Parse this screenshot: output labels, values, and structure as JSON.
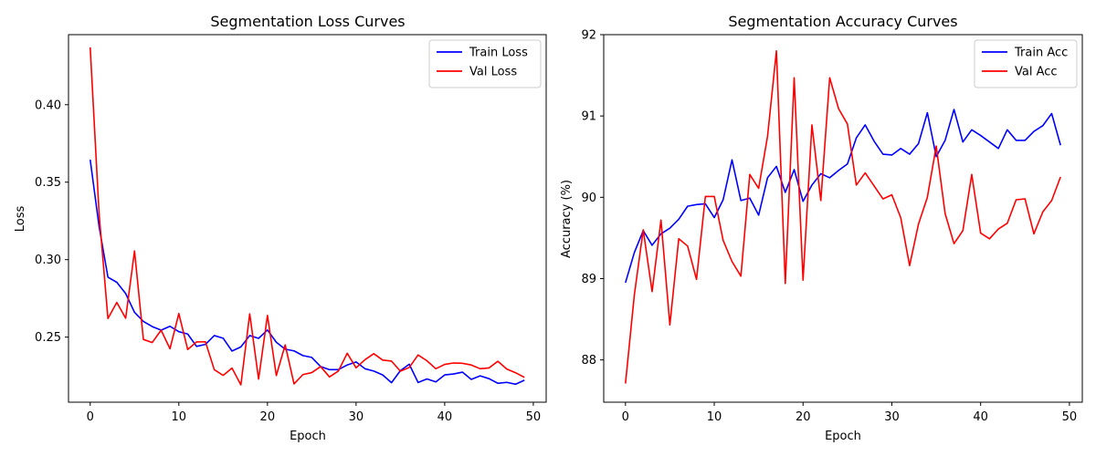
{
  "chart_data": [
    {
      "type": "line",
      "title": "Segmentation Loss Curves",
      "xlabel": "Epoch",
      "ylabel": "Loss",
      "xlim": [
        -2.45,
        51.45
      ],
      "ylim": [
        0.208,
        0.4452
      ],
      "xticks": [
        0,
        10,
        20,
        30,
        40,
        50
      ],
      "yticks": [
        0.25,
        0.3,
        0.35,
        0.4
      ],
      "ytick_labels": [
        "0.25",
        "0.30",
        "0.35",
        "0.40"
      ],
      "legend": "top-right",
      "grid": false,
      "x": [
        0,
        1,
        2,
        3,
        4,
        5,
        6,
        7,
        8,
        9,
        10,
        11,
        12,
        13,
        14,
        15,
        16,
        17,
        18,
        19,
        20,
        21,
        22,
        23,
        24,
        25,
        26,
        27,
        28,
        29,
        30,
        31,
        32,
        33,
        34,
        35,
        36,
        37,
        38,
        39,
        40,
        41,
        42,
        43,
        44,
        45,
        46,
        47,
        48,
        49
      ],
      "series": [
        {
          "name": "Train Loss",
          "color": "#0000ff",
          "values": [
            0.3645,
            0.3214,
            0.2887,
            0.2854,
            0.2781,
            0.266,
            0.2601,
            0.2568,
            0.2545,
            0.257,
            0.2535,
            0.252,
            0.244,
            0.2453,
            0.251,
            0.2493,
            0.241,
            0.2437,
            0.251,
            0.2492,
            0.2546,
            0.2467,
            0.2422,
            0.2411,
            0.2381,
            0.2369,
            0.231,
            0.229,
            0.229,
            0.232,
            0.234,
            0.2296,
            0.2281,
            0.2256,
            0.2206,
            0.2284,
            0.2325,
            0.2207,
            0.223,
            0.2211,
            0.2256,
            0.2262,
            0.2274,
            0.2227,
            0.225,
            0.2232,
            0.2202,
            0.2208,
            0.2196,
            0.2222
          ]
        },
        {
          "name": "Val Loss",
          "color": "#ff0000",
          "values": [
            0.437,
            0.3298,
            0.262,
            0.2724,
            0.2622,
            0.3056,
            0.2485,
            0.2465,
            0.2545,
            0.2425,
            0.2652,
            0.242,
            0.2469,
            0.247,
            0.229,
            0.2253,
            0.23,
            0.2192,
            0.265,
            0.2229,
            0.264,
            0.2252,
            0.245,
            0.2198,
            0.2258,
            0.2271,
            0.231,
            0.2243,
            0.2281,
            0.2396,
            0.2302,
            0.2354,
            0.2393,
            0.2352,
            0.2345,
            0.228,
            0.2304,
            0.2385,
            0.2347,
            0.2296,
            0.2324,
            0.2333,
            0.2331,
            0.232,
            0.2296,
            0.2301,
            0.2344,
            0.2294,
            0.227,
            0.224
          ]
        }
      ]
    },
    {
      "type": "line",
      "title": "Segmentation Accuracy Curves",
      "xlabel": "Epoch",
      "ylabel": "Accuracy (%)",
      "xlim": [
        -2.45,
        51.45
      ],
      "ylim": [
        87.48,
        92.0
      ],
      "xticks": [
        0,
        10,
        20,
        30,
        40,
        50
      ],
      "yticks": [
        88,
        89,
        90,
        91,
        92
      ],
      "ytick_labels": [
        "88",
        "89",
        "90",
        "91",
        "92"
      ],
      "legend": "top-right",
      "grid": false,
      "x": [
        0,
        1,
        2,
        3,
        4,
        5,
        6,
        7,
        8,
        9,
        10,
        11,
        12,
        13,
        14,
        15,
        16,
        17,
        18,
        19,
        20,
        21,
        22,
        23,
        24,
        25,
        26,
        27,
        28,
        29,
        30,
        31,
        32,
        33,
        34,
        35,
        36,
        37,
        38,
        39,
        40,
        41,
        42,
        43,
        44,
        45,
        46,
        47,
        48,
        49
      ],
      "series": [
        {
          "name": "Train Acc",
          "color": "#0000ff",
          "values": [
            88.95,
            89.32,
            89.59,
            89.41,
            89.55,
            89.62,
            89.73,
            89.89,
            89.91,
            89.92,
            89.75,
            89.97,
            90.46,
            89.96,
            89.99,
            89.78,
            90.24,
            90.38,
            90.06,
            90.34,
            89.95,
            90.15,
            90.29,
            90.24,
            90.33,
            90.41,
            90.73,
            90.89,
            90.69,
            90.53,
            90.52,
            90.6,
            90.53,
            90.66,
            91.04,
            90.5,
            90.7,
            91.08,
            90.68,
            90.83,
            90.76,
            90.68,
            90.6,
            90.83,
            90.7,
            90.7,
            90.81,
            90.88,
            91.03,
            90.64
          ]
        },
        {
          "name": "Val Acc",
          "color": "#ff0000",
          "values": [
            87.71,
            88.8,
            89.6,
            88.84,
            89.72,
            88.43,
            89.49,
            89.4,
            88.99,
            90.01,
            90.01,
            89.47,
            89.21,
            89.03,
            90.28,
            90.11,
            90.75,
            91.8,
            88.94,
            91.47,
            88.98,
            90.89,
            89.96,
            91.47,
            91.09,
            90.9,
            90.15,
            90.3,
            90.14,
            89.98,
            90.03,
            89.75,
            89.16,
            89.67,
            90.0,
            90.63,
            89.8,
            89.43,
            89.59,
            90.28,
            89.56,
            89.49,
            89.61,
            89.68,
            89.97,
            89.98,
            89.55,
            89.82,
            89.96,
            90.25
          ]
        }
      ]
    }
  ]
}
